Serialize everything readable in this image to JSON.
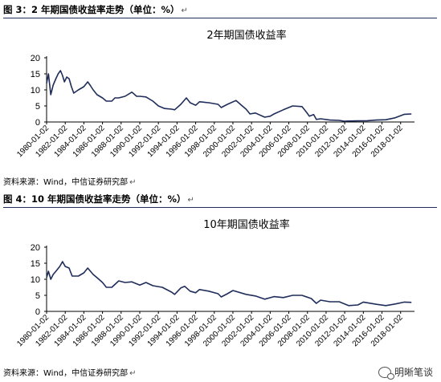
{
  "figure1": {
    "caption": "图 3：2 年期国债收益率走势（单位：%）",
    "source": "资料来源：Wind，中信证券研究部"
  },
  "figure2": {
    "caption": "图 4：10 年期国债收益率走势（单位：%）",
    "source": "资料来源：Wind，中信证券研究部"
  },
  "return_mark": "↵",
  "watermark": {
    "text": "明晰笔谈",
    "icon": "wechat-icon"
  },
  "colors": {
    "line": "#1f2d5a",
    "rule": "#1f2d5a"
  },
  "chart_data": [
    {
      "type": "line",
      "title": "2年期国债收益率",
      "xlabel": "",
      "ylabel": "",
      "ylim": [
        0,
        20
      ],
      "yticks": [
        0,
        5,
        10,
        15,
        20
      ],
      "xlim": [
        "1980-01-02",
        "2019-06-30"
      ],
      "x_tick_labels": [
        "1980-01-02",
        "1982-01-02",
        "1984-01-02",
        "1986-01-02",
        "1988-01-02",
        "1990-01-02",
        "1992-01-02",
        "1994-01-02",
        "1996-01-02",
        "1998-01-02",
        "2000-01-02",
        "2002-01-02",
        "2004-01-02",
        "2006-01-02",
        "2008-01-02",
        "2010-01-02",
        "2012-01-02",
        "2014-01-02",
        "2016-01-02",
        "2018-01-02"
      ],
      "grid": false,
      "legend": "none",
      "series": [
        {
          "x": [
            "1980-01-02",
            "1980-03-15",
            "1980-06-15",
            "1980-09-15",
            "1981-01-02",
            "1981-04-01",
            "1981-07-01",
            "1981-09-15",
            "1981-12-01",
            "1982-03-01",
            "1982-06-01",
            "1982-09-01",
            "1982-12-01",
            "1983-06-01",
            "1984-01-02",
            "1984-06-01",
            "1984-09-01",
            "1985-01-02",
            "1985-06-01",
            "1986-01-02",
            "1986-06-01",
            "1987-01-02",
            "1987-05-01",
            "1987-10-01",
            "1988-06-01",
            "1989-03-01",
            "1989-09-01",
            "1990-01-02",
            "1990-09-01",
            "1991-06-01",
            "1992-01-02",
            "1992-09-01",
            "1993-06-01",
            "1993-10-01",
            "1994-06-01",
            "1995-01-02",
            "1995-06-01",
            "1996-01-02",
            "1996-06-01",
            "1997-06-01",
            "1998-06-01",
            "1998-10-01",
            "1999-06-01",
            "2000-05-01",
            "2001-01-02",
            "2001-06-01",
            "2001-11-01",
            "2002-06-01",
            "2003-06-01",
            "2004-01-02",
            "2004-06-01",
            "2005-06-01",
            "2006-06-01",
            "2007-06-01",
            "2007-12-01",
            "2008-03-15",
            "2008-09-01",
            "2008-12-15",
            "2009-06-01",
            "2010-06-01",
            "2011-06-01",
            "2011-12-15",
            "2012-06-01",
            "2013-06-01",
            "2014-06-01",
            "2015-06-01",
            "2016-06-01",
            "2017-06-01",
            "2018-06-01",
            "2019-03-01"
          ],
          "y": [
            12.0,
            15.0,
            8.5,
            11.5,
            13.5,
            15.0,
            16.0,
            14.5,
            12.5,
            14.0,
            13.5,
            11.0,
            9.0,
            10.0,
            11.0,
            12.5,
            11.5,
            10.0,
            8.5,
            7.5,
            6.5,
            6.5,
            7.5,
            7.5,
            8.0,
            9.3,
            8.0,
            8.0,
            7.8,
            6.5,
            5.0,
            4.2,
            4.0,
            3.8,
            5.5,
            7.5,
            6.0,
            5.2,
            6.3,
            6.0,
            5.5,
            4.5,
            5.5,
            6.7,
            5.0,
            4.0,
            2.5,
            2.8,
            1.5,
            1.8,
            2.5,
            3.8,
            5.0,
            4.8,
            3.0,
            1.8,
            2.3,
            0.8,
            1.0,
            0.6,
            0.5,
            0.25,
            0.3,
            0.35,
            0.4,
            0.6,
            0.7,
            1.3,
            2.4,
            2.5
          ]
        }
      ]
    },
    {
      "type": "line",
      "title": "10年期国债收益率",
      "xlabel": "",
      "ylabel": "",
      "ylim": [
        0,
        20
      ],
      "yticks": [
        0,
        5,
        10,
        15,
        20
      ],
      "xlim": [
        "1980-01-02",
        "2019-06-30"
      ],
      "x_tick_labels": [
        "1980-01-02",
        "1982-01-02",
        "1984-01-02",
        "1986-01-02",
        "1988-01-02",
        "1990-01-02",
        "1992-01-02",
        "1994-01-02",
        "1996-01-02",
        "1998-01-02",
        "2000-01-02",
        "2002-01-02",
        "2004-01-02",
        "2006-01-02",
        "2008-01-02",
        "2010-01-02",
        "2012-01-02",
        "2014-01-02",
        "2016-01-02",
        "2018-01-02"
      ],
      "grid": false,
      "legend": "none",
      "series": [
        {
          "x": [
            "1980-01-02",
            "1980-03-15",
            "1980-06-15",
            "1980-09-15",
            "1981-01-02",
            "1981-06-01",
            "1981-09-15",
            "1982-01-02",
            "1982-06-01",
            "1982-10-01",
            "1983-06-01",
            "1984-01-02",
            "1984-06-01",
            "1985-01-02",
            "1985-06-01",
            "1986-01-02",
            "1986-06-01",
            "1987-01-02",
            "1987-10-01",
            "1988-06-01",
            "1989-03-01",
            "1990-01-02",
            "1990-09-01",
            "1991-06-01",
            "1992-06-01",
            "1993-06-01",
            "1993-10-01",
            "1994-06-01",
            "1994-11-01",
            "1995-06-01",
            "1996-01-02",
            "1996-06-01",
            "1997-06-01",
            "1998-06-01",
            "1998-10-01",
            "1999-06-01",
            "2000-01-02",
            "2001-06-01",
            "2002-06-01",
            "2003-06-01",
            "2004-06-01",
            "2005-06-01",
            "2006-06-01",
            "2007-06-01",
            "2008-06-01",
            "2008-12-15",
            "2009-06-01",
            "2010-06-01",
            "2011-06-01",
            "2012-06-01",
            "2013-06-01",
            "2014-01-02",
            "2015-06-01",
            "2016-06-01",
            "2017-06-01",
            "2018-06-01",
            "2019-03-01"
          ],
          "y": [
            10.5,
            12.5,
            10.0,
            11.5,
            12.5,
            14.0,
            15.5,
            14.0,
            13.5,
            11.0,
            11.0,
            12.0,
            13.5,
            11.5,
            10.5,
            9.0,
            7.5,
            7.5,
            9.5,
            9.0,
            9.2,
            8.2,
            9.0,
            8.0,
            7.5,
            6.0,
            5.3,
            7.3,
            7.8,
            6.3,
            5.8,
            6.8,
            6.3,
            5.5,
            4.5,
            5.5,
            6.5,
            5.3,
            4.8,
            3.8,
            4.6,
            4.3,
            5.0,
            5.0,
            4.0,
            2.5,
            3.5,
            3.0,
            3.0,
            1.8,
            2.0,
            2.9,
            2.2,
            1.8,
            2.3,
            2.9,
            2.8
          ]
        }
      ]
    }
  ]
}
